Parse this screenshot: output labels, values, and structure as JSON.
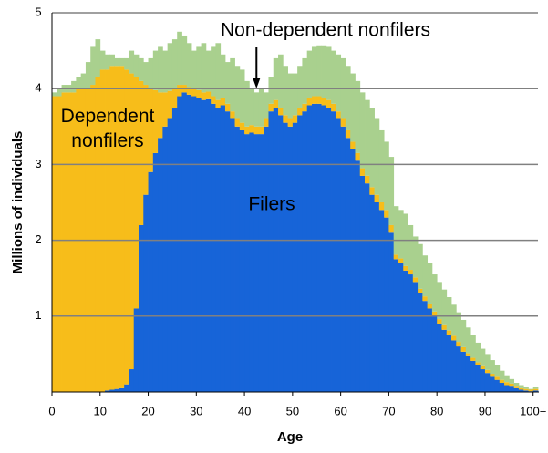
{
  "chart_data": {
    "type": "stacked-bar",
    "x_label": "Age",
    "y_label": "Millions of individuals",
    "x": [
      0,
      1,
      2,
      3,
      4,
      5,
      6,
      7,
      8,
      9,
      10,
      11,
      12,
      13,
      14,
      15,
      16,
      17,
      18,
      19,
      20,
      21,
      22,
      23,
      24,
      25,
      26,
      27,
      28,
      29,
      30,
      31,
      32,
      33,
      34,
      35,
      36,
      37,
      38,
      39,
      40,
      41,
      42,
      43,
      44,
      45,
      46,
      47,
      48,
      49,
      50,
      51,
      52,
      53,
      54,
      55,
      56,
      57,
      58,
      59,
      60,
      61,
      62,
      63,
      64,
      65,
      66,
      67,
      68,
      69,
      70,
      71,
      72,
      73,
      74,
      75,
      76,
      77,
      78,
      79,
      80,
      81,
      82,
      83,
      84,
      85,
      86,
      87,
      88,
      89,
      90,
      91,
      92,
      93,
      94,
      95,
      96,
      97,
      98,
      99,
      100
    ],
    "xlim": [
      0,
      101
    ],
    "xticks": [
      0,
      10,
      20,
      30,
      40,
      50,
      60,
      70,
      80,
      90,
      {
        "value": 100,
        "label": "100+"
      }
    ],
    "ylim": [
      0,
      5
    ],
    "yticks": [
      1,
      2,
      3,
      4,
      5
    ],
    "grid": true,
    "arrow_x": 42,
    "series": [
      {
        "name": "Filers",
        "color": "#1764d8",
        "values": [
          0,
          0,
          0,
          0,
          0,
          0,
          0,
          0,
          0,
          0,
          0,
          0.02,
          0.03,
          0.04,
          0.05,
          0.1,
          0.3,
          1.1,
          2.2,
          2.6,
          2.9,
          3.15,
          3.35,
          3.5,
          3.6,
          3.75,
          3.9,
          3.95,
          3.92,
          3.9,
          3.88,
          3.85,
          3.86,
          3.8,
          3.75,
          3.78,
          3.7,
          3.6,
          3.5,
          3.45,
          3.4,
          3.42,
          3.4,
          3.4,
          3.5,
          3.7,
          3.75,
          3.65,
          3.55,
          3.5,
          3.55,
          3.65,
          3.7,
          3.78,
          3.8,
          3.8,
          3.78,
          3.75,
          3.7,
          3.6,
          3.5,
          3.35,
          3.2,
          3.05,
          2.85,
          2.75,
          2.6,
          2.5,
          2.4,
          2.3,
          2.1,
          1.75,
          1.7,
          1.6,
          1.55,
          1.45,
          1.3,
          1.2,
          1.1,
          1.0,
          0.9,
          0.82,
          0.75,
          0.68,
          0.6,
          0.53,
          0.47,
          0.41,
          0.35,
          0.3,
          0.25,
          0.2,
          0.16,
          0.12,
          0.09,
          0.07,
          0.05,
          0.03,
          0.02,
          0.01,
          0.02
        ]
      },
      {
        "name": "Dependent nonfilers",
        "color": "#f7bd1a",
        "values": [
          3.9,
          3.9,
          3.95,
          3.95,
          3.95,
          4.0,
          4.0,
          4.0,
          4.05,
          4.15,
          4.25,
          4.23,
          4.27,
          4.26,
          4.25,
          4.15,
          3.9,
          3.05,
          1.9,
          1.45,
          1.1,
          0.83,
          0.6,
          0.45,
          0.37,
          0.25,
          0.15,
          0.1,
          0.1,
          0.1,
          0.1,
          0.1,
          0.1,
          0.1,
          0.1,
          0.1,
          0.1,
          0.1,
          0.1,
          0.1,
          0.1,
          0.1,
          0.1,
          0.1,
          0.1,
          0.1,
          0.1,
          0.1,
          0.1,
          0.1,
          0.1,
          0.1,
          0.1,
          0.1,
          0.1,
          0.1,
          0.1,
          0.1,
          0.1,
          0.1,
          0.1,
          0.1,
          0.1,
          0.1,
          0.1,
          0.1,
          0.1,
          0.1,
          0.1,
          0.1,
          0.1,
          0.06,
          0.06,
          0.06,
          0.06,
          0.06,
          0.06,
          0.06,
          0.06,
          0.06,
          0.06,
          0.06,
          0.06,
          0.06,
          0.06,
          0.06,
          0.04,
          0.04,
          0.04,
          0.04,
          0.04,
          0.04,
          0.04,
          0.04,
          0.04,
          0.04,
          0.02,
          0.02,
          0.02,
          0.02,
          0.02
        ]
      },
      {
        "name": "Non-dependent nonfilers",
        "color": "#a9d08e",
        "values": [
          0.05,
          0.1,
          0.1,
          0.1,
          0.15,
          0.15,
          0.2,
          0.35,
          0.5,
          0.5,
          0.25,
          0.2,
          0.15,
          0.1,
          0.1,
          0.15,
          0.3,
          0.3,
          0.3,
          0.3,
          0.4,
          0.52,
          0.6,
          0.55,
          0.63,
          0.65,
          0.7,
          0.65,
          0.58,
          0.5,
          0.57,
          0.65,
          0.54,
          0.65,
          0.75,
          0.57,
          0.55,
          0.7,
          0.7,
          0.7,
          0.6,
          0.48,
          0.45,
          0.5,
          0.35,
          0.35,
          0.55,
          0.7,
          0.65,
          0.6,
          0.55,
          0.55,
          0.6,
          0.62,
          0.65,
          0.67,
          0.69,
          0.7,
          0.7,
          0.75,
          0.8,
          0.85,
          0.9,
          0.95,
          1.0,
          1.0,
          1.05,
          1.0,
          0.95,
          0.9,
          0.9,
          0.64,
          0.64,
          0.69,
          0.59,
          0.54,
          0.59,
          0.54,
          0.54,
          0.49,
          0.49,
          0.47,
          0.44,
          0.41,
          0.39,
          0.36,
          0.34,
          0.3,
          0.26,
          0.23,
          0.21,
          0.18,
          0.15,
          0.12,
          0.09,
          0.06,
          0.05,
          0.04,
          0.02,
          0.01,
          0.02
        ]
      }
    ]
  }
}
